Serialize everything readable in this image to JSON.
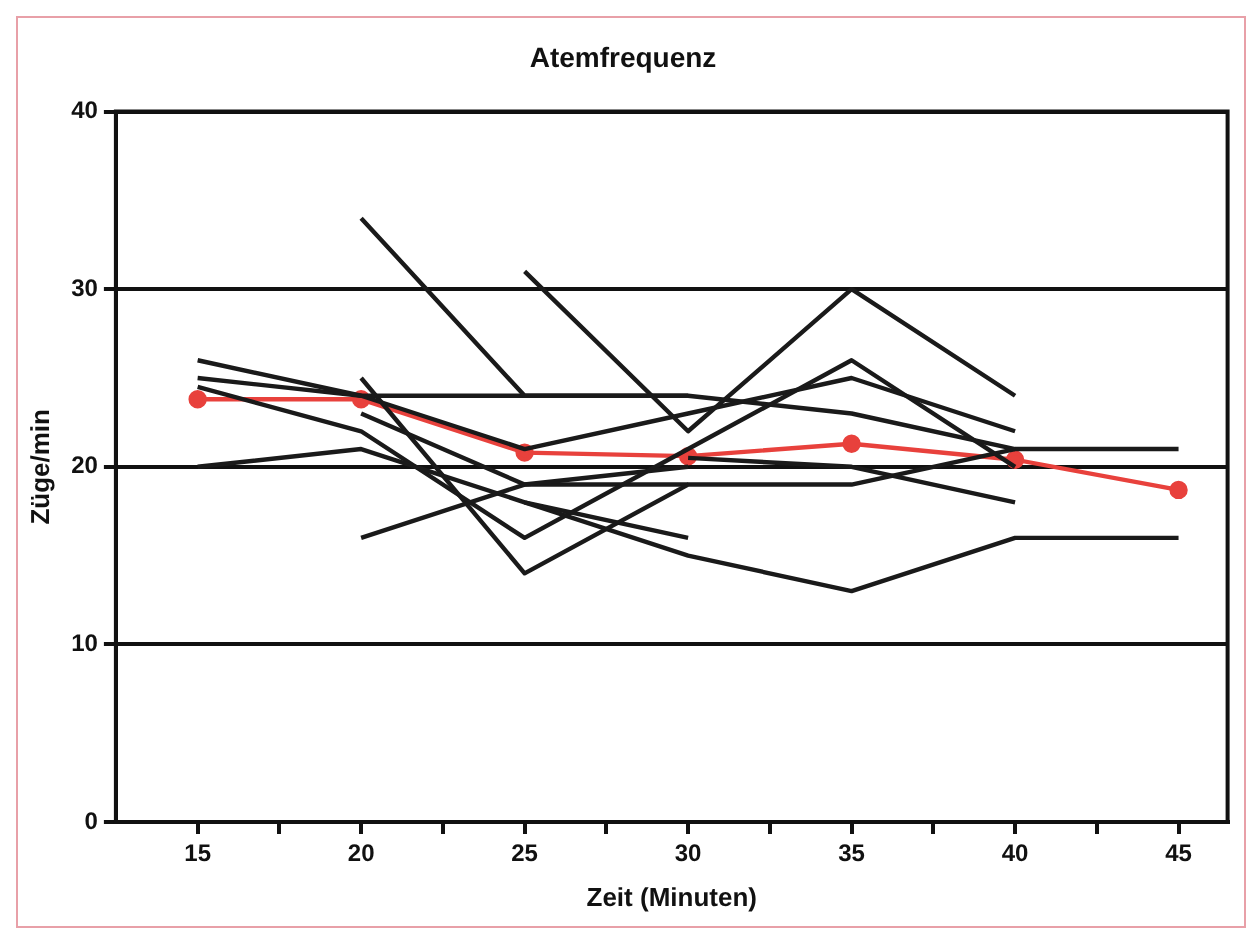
{
  "chart_data": {
    "type": "line",
    "title": "Atemfrequenz",
    "xlabel": "Zeit (Minuten)",
    "ylabel": "Züge/min",
    "x": [
      15,
      20,
      25,
      30,
      35,
      40,
      45
    ],
    "xlim": [
      12.5,
      46.5
    ],
    "xticks": [
      15,
      {
        "value": 17.5,
        "label": null
      },
      20,
      {
        "value": 22.5,
        "label": null
      },
      25,
      {
        "value": 27.5,
        "label": null
      },
      30,
      {
        "value": 32.5,
        "label": null
      },
      35,
      {
        "value": 37.5,
        "label": null
      },
      40,
      {
        "value": 42.5,
        "label": null
      },
      45
    ],
    "ylim": [
      0,
      40
    ],
    "yticks": [
      0,
      10,
      20,
      30,
      40
    ],
    "grid": "y",
    "legend": false,
    "marker": "none",
    "line_style": "solid",
    "series": [
      {
        "color": "#1a1a1a",
        "values": [
          null,
          34,
          24,
          24,
          null,
          null,
          null
        ]
      },
      {
        "color": "#1a1a1a",
        "values": [
          null,
          null,
          31,
          22,
          30,
          24,
          null
        ]
      },
      {
        "color": "#1a1a1a",
        "values": [
          26,
          24,
          21,
          23,
          25,
          22,
          null
        ]
      },
      {
        "color": "#1a1a1a",
        "values": [
          25,
          24,
          24,
          24,
          23,
          21,
          null
        ]
      },
      {
        "color": "#1a1a1a",
        "values": [
          20,
          21,
          18,
          16,
          null,
          null,
          null
        ]
      },
      {
        "color": "#1a1a1a",
        "values": [
          null,
          16,
          19,
          20,
          null,
          null,
          null
        ]
      },
      {
        "color": "#1a1a1a",
        "values": [
          24.5,
          22,
          16,
          21,
          26,
          20,
          null
        ]
      },
      {
        "color": "#1a1a1a",
        "values": [
          null,
          25,
          14,
          19,
          19,
          21,
          21
        ]
      },
      {
        "color": "#1a1a1a",
        "values": [
          null,
          null,
          18,
          15,
          13,
          16,
          16
        ]
      },
      {
        "color": "#1a1a1a",
        "values": [
          null,
          23,
          19,
          19,
          null,
          null,
          null
        ]
      },
      {
        "color": "#1a1a1a",
        "values": [
          null,
          null,
          null,
          20.5,
          20,
          18,
          null
        ]
      },
      {
        "color": "#e8413c",
        "marker": "circle",
        "values": [
          23.8,
          23.8,
          20.8,
          20.6,
          21.3,
          20.4,
          18.7
        ]
      }
    ]
  }
}
